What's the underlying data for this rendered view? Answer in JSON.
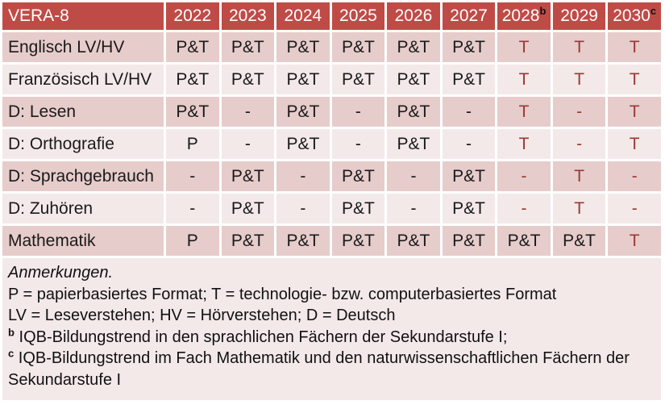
{
  "colors": {
    "header_bg": "#bf4b47",
    "band_dark": "#e6cccb",
    "band_light": "#f3e9e8",
    "accent_text": "#9a3834"
  },
  "table": {
    "header": [
      {
        "label": "VERA-8"
      },
      {
        "label": "2022"
      },
      {
        "label": "2023"
      },
      {
        "label": "2024"
      },
      {
        "label": "2025"
      },
      {
        "label": "2026"
      },
      {
        "label": "2027"
      },
      {
        "label": "2028",
        "sup": "b"
      },
      {
        "label": "2029"
      },
      {
        "label": "2030",
        "sup": "c"
      }
    ],
    "rows": [
      {
        "label": "Englisch LV/HV",
        "cells": [
          {
            "t": "P&T"
          },
          {
            "t": "P&T"
          },
          {
            "t": "P&T"
          },
          {
            "t": "P&T"
          },
          {
            "t": "P&T"
          },
          {
            "t": "P&T"
          },
          {
            "t": "T",
            "red": true
          },
          {
            "t": "T",
            "red": true
          },
          {
            "t": "T",
            "red": true
          }
        ]
      },
      {
        "label": "Französisch LV/HV",
        "cells": [
          {
            "t": "P&T"
          },
          {
            "t": "P&T"
          },
          {
            "t": "P&T"
          },
          {
            "t": "P&T"
          },
          {
            "t": "P&T"
          },
          {
            "t": "P&T"
          },
          {
            "t": "T",
            "red": true
          },
          {
            "t": "T",
            "red": true
          },
          {
            "t": "T",
            "red": true
          }
        ]
      },
      {
        "label": "D: Lesen",
        "cells": [
          {
            "t": "P&T"
          },
          {
            "t": "-"
          },
          {
            "t": "P&T"
          },
          {
            "t": "-"
          },
          {
            "t": "P&T"
          },
          {
            "t": "-"
          },
          {
            "t": "T",
            "red": true
          },
          {
            "t": "-",
            "red": true
          },
          {
            "t": "T",
            "red": true
          }
        ]
      },
      {
        "label": "D: Orthografie",
        "cells": [
          {
            "t": "P"
          },
          {
            "t": "-"
          },
          {
            "t": "P&T"
          },
          {
            "t": "-"
          },
          {
            "t": "P&T"
          },
          {
            "t": "-"
          },
          {
            "t": "T",
            "red": true
          },
          {
            "t": "-",
            "red": true
          },
          {
            "t": "T",
            "red": true
          }
        ]
      },
      {
        "label": "D: Sprachgebrauch",
        "cells": [
          {
            "t": "-"
          },
          {
            "t": "P&T"
          },
          {
            "t": "-"
          },
          {
            "t": "P&T"
          },
          {
            "t": "-"
          },
          {
            "t": "P&T"
          },
          {
            "t": "-",
            "red": true
          },
          {
            "t": "T",
            "red": true
          },
          {
            "t": "-",
            "red": true
          }
        ]
      },
      {
        "label": "D: Zuhören",
        "cells": [
          {
            "t": "-"
          },
          {
            "t": "P&T"
          },
          {
            "t": "-"
          },
          {
            "t": "P&T"
          },
          {
            "t": "-"
          },
          {
            "t": "P&T"
          },
          {
            "t": "-",
            "red": true
          },
          {
            "t": "T",
            "red": true
          },
          {
            "t": "-",
            "red": true
          }
        ]
      },
      {
        "label": "Mathematik",
        "cells": [
          {
            "t": "P"
          },
          {
            "t": "P&T"
          },
          {
            "t": "P&T"
          },
          {
            "t": "P&T"
          },
          {
            "t": "P&T"
          },
          {
            "t": "P&T"
          },
          {
            "t": "P&T"
          },
          {
            "t": "P&T"
          },
          {
            "t": "T",
            "red": true
          }
        ]
      }
    ]
  },
  "notes": {
    "heading": "Anmerkungen.",
    "lines": [
      {
        "text": "P = papierbasiertes Format; T = technologie- bzw. computerbasiertes Format"
      },
      {
        "text": "LV = Leseverstehen; HV = Hörverstehen; D = Deutsch"
      },
      {
        "sup": "b",
        "text": "IQB-Bildungstrend in den sprachlichen Fächern der Sekundarstufe I;"
      },
      {
        "sup": "c",
        "text": "IQB-Bildungstrend im Fach Mathematik und den naturwissenschaftlichen Fächern der Sekundarstufe I"
      }
    ]
  }
}
